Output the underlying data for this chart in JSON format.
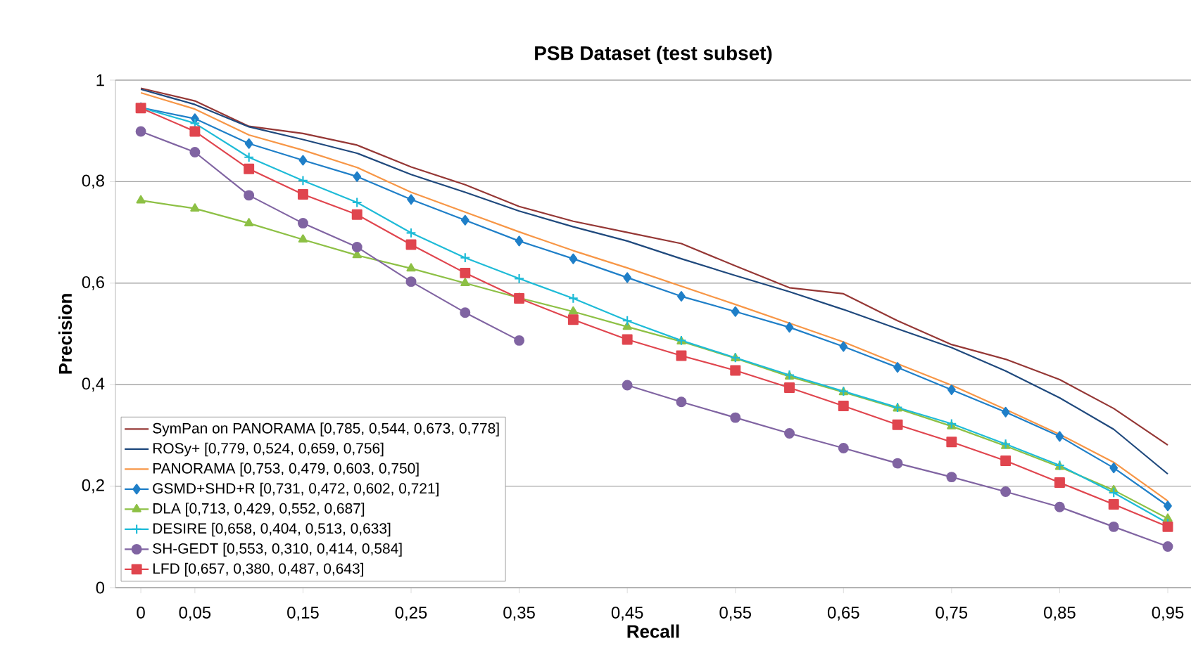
{
  "chart_data": {
    "type": "line",
    "title": "PSB Dataset (test subset)",
    "xlabel": "Recall",
    "ylabel": "Precision",
    "categories": [
      "0",
      "0,05",
      null,
      "0,15",
      null,
      "0,25",
      null,
      "0,35",
      null,
      "0,45",
      null,
      "0,55",
      null,
      "0,65",
      null,
      "0,75",
      null,
      "0,85",
      null,
      "0,95"
    ],
    "ylim": [
      0,
      1
    ],
    "yticks": [
      0,
      {
        "value": 0.2,
        "label": "0,2"
      },
      {
        "value": 0.4,
        "label": "0,4"
      },
      {
        "value": 0.6,
        "label": "0,6"
      },
      {
        "value": 0.8,
        "label": "0,8"
      },
      1
    ],
    "grid": "y",
    "legend": "bottom left",
    "series": [
      {
        "name": "SymPan on PANORAMA [0,785, 0,544, 0,673, 0,778]",
        "color": "#953735",
        "marker": "none",
        "values": [
          0.984,
          0.959,
          0.909,
          0.895,
          0.872,
          0.829,
          0.794,
          0.751,
          0.722,
          0.7,
          0.678,
          0.634,
          0.591,
          0.579,
          0.526,
          0.479,
          0.45,
          0.41,
          0.353,
          0.281
        ]
      },
      {
        "name": "ROSy+ [0,779, 0,524, 0,659, 0,756]",
        "color": "#1f497d",
        "marker": "none",
        "values": [
          0.982,
          0.952,
          0.908,
          0.883,
          0.856,
          0.814,
          0.779,
          0.742,
          0.711,
          0.683,
          0.648,
          0.615,
          0.583,
          0.548,
          0.51,
          0.473,
          0.427,
          0.374,
          0.312,
          0.224
        ]
      },
      {
        "name": "PANORAMA [0,753, 0,479, 0,603, 0,750]",
        "color": "#f79646",
        "marker": "none",
        "values": [
          0.975,
          0.943,
          0.892,
          0.862,
          0.828,
          0.779,
          0.74,
          0.701,
          0.664,
          0.63,
          0.594,
          0.558,
          0.521,
          0.484,
          0.441,
          0.399,
          0.351,
          0.302,
          0.247,
          0.171
        ]
      },
      {
        "name": "GSMD+SHD+R [0,731, 0,472, 0,602, 0,721]",
        "color": "#1f7fc8",
        "marker": "diamond",
        "values": [
          0.946,
          0.924,
          0.875,
          0.842,
          0.81,
          0.765,
          0.724,
          0.683,
          0.648,
          0.611,
          0.574,
          0.544,
          0.513,
          0.475,
          0.434,
          0.39,
          0.346,
          0.298,
          0.236,
          0.161
        ]
      },
      {
        "name": "DLA [0,713, 0,429, 0,552, 0,687]",
        "color": "#8dc045",
        "marker": "triangle",
        "values": [
          0.763,
          0.747,
          0.718,
          0.686,
          0.655,
          0.629,
          0.6,
          0.571,
          0.544,
          0.514,
          0.485,
          0.452,
          0.416,
          0.385,
          0.353,
          0.318,
          0.279,
          0.238,
          0.192,
          0.136
        ]
      },
      {
        "name": "DESIRE [0,658, 0,404, 0,513, 0,633]",
        "color": "#1ebbd7",
        "marker": "cross",
        "values": [
          0.946,
          0.915,
          0.848,
          0.802,
          0.759,
          0.699,
          0.65,
          0.609,
          0.57,
          0.526,
          0.487,
          0.453,
          0.419,
          0.387,
          0.355,
          0.323,
          0.283,
          0.241,
          0.187,
          0.127
        ]
      },
      {
        "name": "SH-GEDT [0,553, 0,310, 0,414, 0,584]",
        "color": "#8064a2",
        "marker": "circle",
        "values": [
          0.899,
          0.858,
          0.773,
          0.718,
          0.671,
          0.603,
          0.542,
          0.487,
          null,
          0.399,
          0.366,
          0.335,
          0.304,
          0.275,
          0.245,
          0.218,
          0.189,
          0.159,
          0.12,
          0.081
        ]
      },
      {
        "name": "LFD [0,657, 0,380, 0,487, 0,643]",
        "color": "#e0454e",
        "marker": "square",
        "values": [
          0.945,
          0.899,
          0.825,
          0.775,
          0.735,
          0.676,
          0.62,
          0.57,
          0.528,
          0.489,
          0.457,
          0.428,
          0.394,
          0.358,
          0.321,
          0.287,
          0.25,
          0.207,
          0.164,
          0.12
        ]
      }
    ]
  }
}
